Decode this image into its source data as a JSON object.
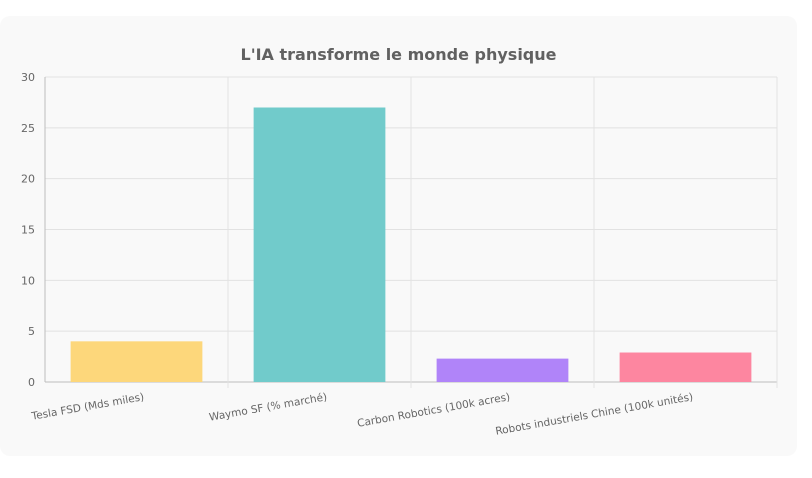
{
  "chart_data": {
    "type": "bar",
    "title": "L'IA transforme le monde physique",
    "categories": [
      "Tesla FSD (Mds miles)",
      "Waymo SF (% marché)",
      "Carbon Robotics (100k acres)",
      "Robots industriels Chine (100k unités)"
    ],
    "values": [
      4,
      27,
      2.3,
      2.9
    ],
    "colors": [
      "#fdd77b",
      "#71cbcb",
      "#b084f9",
      "#fd86a0"
    ],
    "ylim": [
      0,
      30
    ],
    "yticks": [
      0,
      5,
      10,
      15,
      20,
      25,
      30
    ],
    "grid": true,
    "legend": "none"
  }
}
